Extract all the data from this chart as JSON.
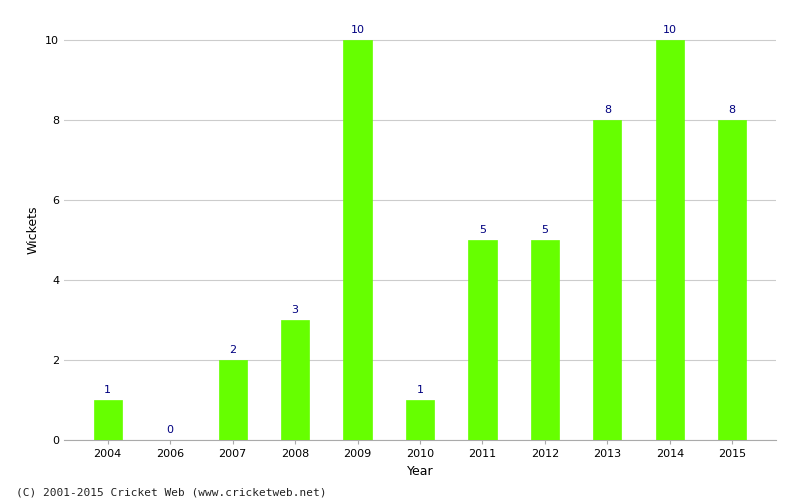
{
  "years": [
    2004,
    2006,
    2007,
    2008,
    2009,
    2010,
    2011,
    2012,
    2013,
    2014,
    2015
  ],
  "wickets": [
    1,
    0,
    2,
    3,
    10,
    1,
    5,
    5,
    8,
    10,
    8
  ],
  "bar_color": "#66ff00",
  "bar_edge_color": "#66ff00",
  "xlabel": "Year",
  "ylabel": "Wickets",
  "ylim": [
    0,
    10.5
  ],
  "yticks": [
    0,
    2,
    4,
    6,
    8,
    10
  ],
  "annotation_color": "#000080",
  "annotation_fontsize": 8,
  "xlabel_fontsize": 9,
  "ylabel_fontsize": 9,
  "tick_fontsize": 8,
  "background_color": "#ffffff",
  "grid_color": "#cccccc",
  "footer_text": "(C) 2001-2015 Cricket Web (www.cricketweb.net)",
  "footer_fontsize": 8,
  "bar_width": 0.45,
  "spine_color": "#aaaaaa"
}
